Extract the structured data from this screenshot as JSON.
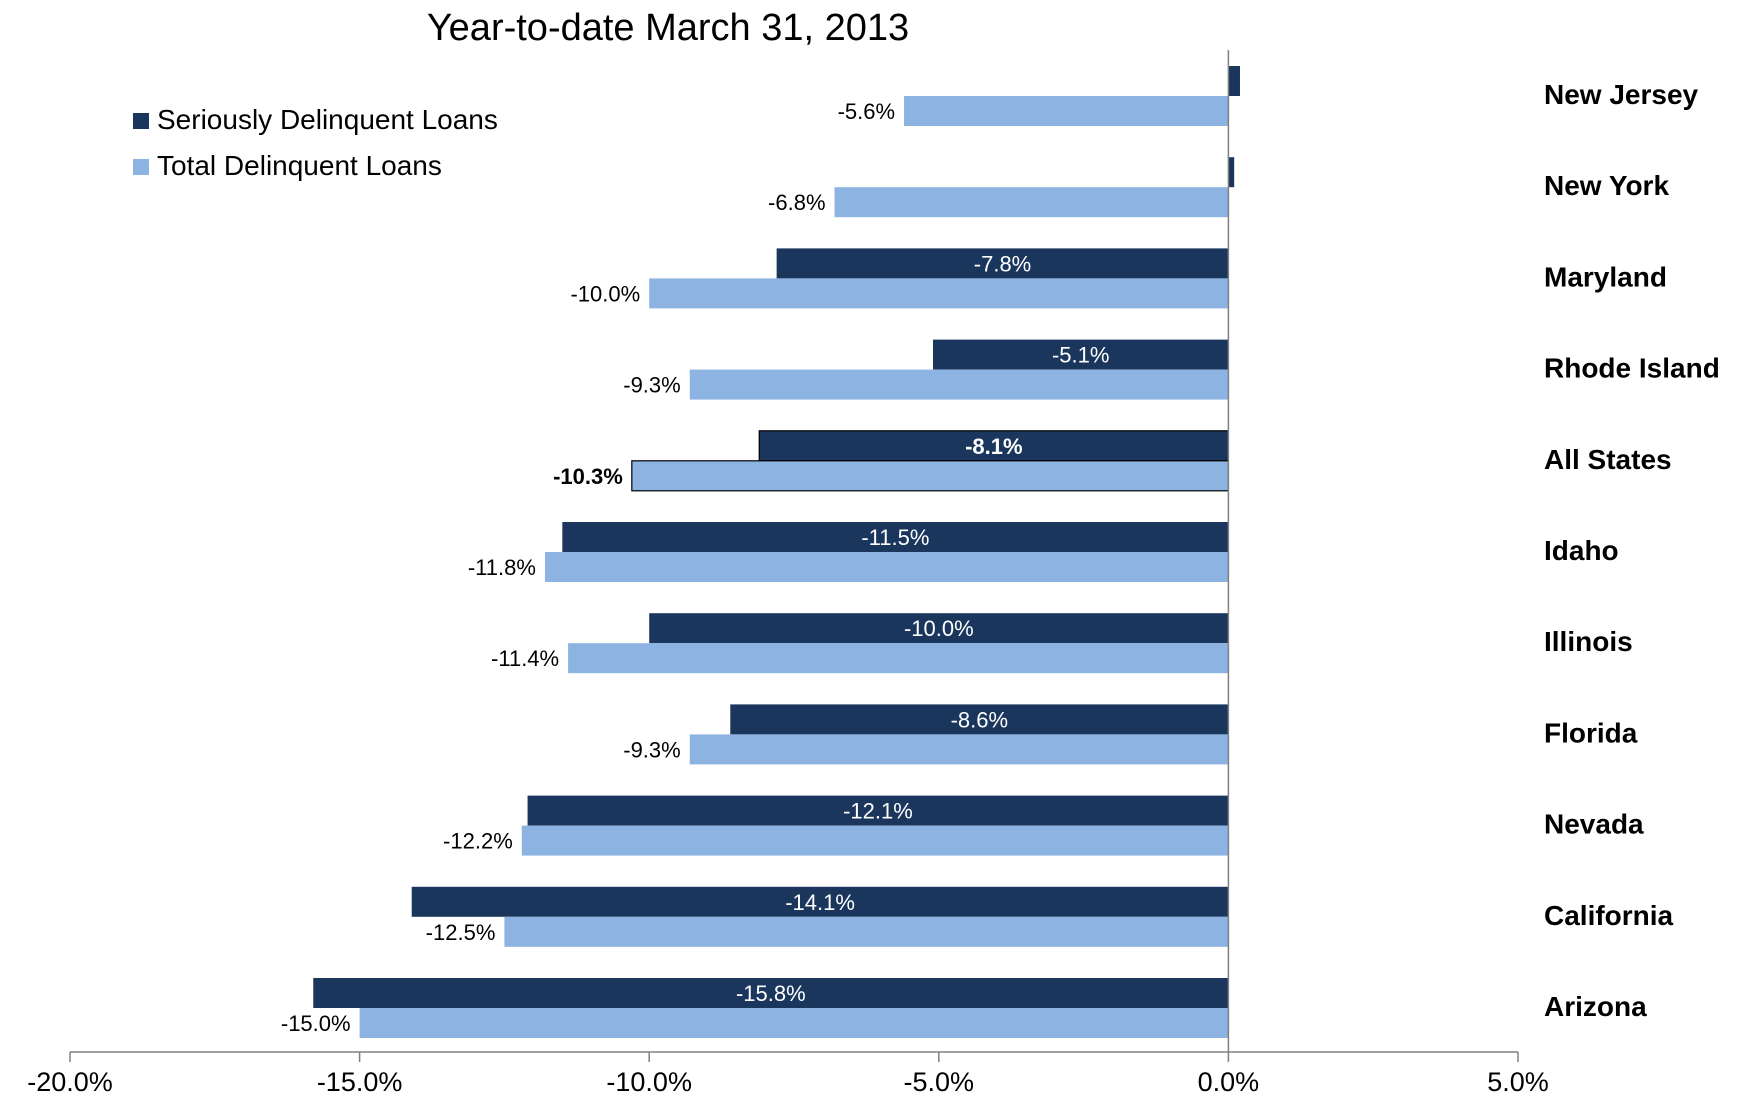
{
  "chart_data": {
    "type": "bar",
    "orientation": "horizontal",
    "title": "Year-to-date March 31, 2013",
    "categories": [
      "New Jersey",
      "New York",
      "Maryland",
      "Rhode Island",
      "All States",
      "Idaho",
      "Illinois",
      "Florida",
      "Nevada",
      "California",
      "Arizona"
    ],
    "highlight_category": "All States",
    "series": [
      {
        "name": "Seriously Delinquent Loans",
        "color": "#1b365d",
        "values": [
          0.2,
          0.1,
          -7.8,
          -5.1,
          -8.1,
          -11.5,
          -10.0,
          -8.6,
          -12.1,
          -14.1,
          -15.8
        ],
        "labels": [
          "",
          "",
          "-7.8%",
          "-5.1%",
          "-8.1%",
          "-11.5%",
          "-10.0%",
          "-8.6%",
          "-12.1%",
          "-14.1%",
          "-15.8%"
        ]
      },
      {
        "name": "Total Delinquent Loans",
        "color": "#8db3e2",
        "values": [
          -5.6,
          -6.8,
          -10.0,
          -9.3,
          -10.3,
          -11.8,
          -11.4,
          -9.3,
          -12.2,
          -12.5,
          -15.0
        ],
        "labels": [
          "-5.6%",
          "-6.8%",
          "-10.0%",
          "-9.3%",
          "-10.3%",
          "-11.8%",
          "-11.4%",
          "-9.3%",
          "-12.2%",
          "-12.5%",
          "-15.0%"
        ]
      }
    ],
    "xlim": [
      -20,
      5
    ],
    "xticks": [
      -20,
      -15,
      -10,
      -5,
      0,
      5
    ],
    "xtick_labels": [
      "-20.0%",
      "-15.0%",
      "-10.0%",
      "-5.0%",
      "0.0%",
      "5.0%"
    ],
    "xlabel": "",
    "ylabel": "",
    "grid": false,
    "legend_position": "top-left"
  }
}
